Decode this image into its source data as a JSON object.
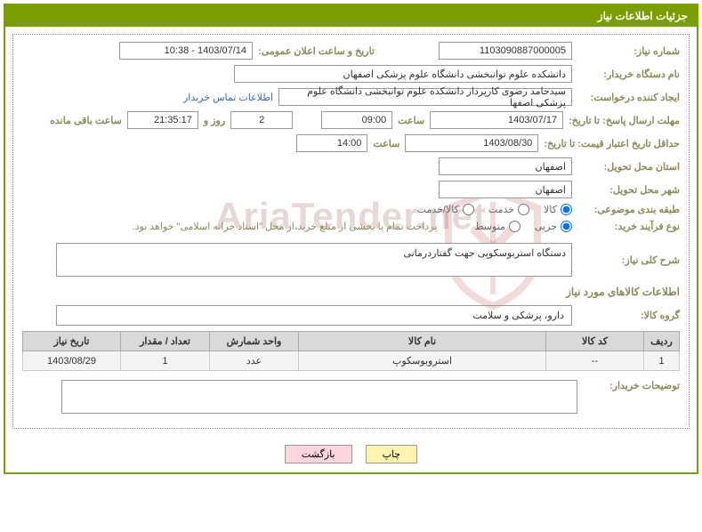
{
  "panel_title": "جزئیات اطلاعات نیاز",
  "labels": {
    "need_number": "شماره نیاز:",
    "announce_datetime": "تاریخ و ساعت اعلان عمومی:",
    "buyer_org": "نام دستگاه خریدار:",
    "requester": "ایجاد کننده درخواست:",
    "contact_link": "اطلاعات تماس خریدار",
    "response_deadline": "مهلت ارسال پاسخ: تا تاریخ:",
    "hour": "ساعت",
    "days_and": "روز و",
    "remaining": "ساعت باقی مانده",
    "price_validity": "حداقل تاریخ اعتبار قیمت: تا تاریخ:",
    "delivery_province": "استان محل تحویل:",
    "delivery_city": "شهر محل تحویل:",
    "category": "طبقه بندی موضوعی:",
    "purchase_type": "نوع فرآیند خرید:",
    "general_desc": "شرح کلی نیاز:",
    "items_info": "اطلاعات کالاهای مورد نیاز",
    "item_group": "گروه کالا:",
    "buyer_notes": "توضیحات خریدار:"
  },
  "values": {
    "need_number": "1103090887000005",
    "announce_datetime": "1403/07/14 - 10:38",
    "buyer_org": "دانشکده علوم توانبخشی دانشگاه علوم پزشکی اصفهان",
    "requester": "سیدحامد رضوی کارپرداز دانشکده علوم توانبخشی دانشگاه علوم پزشکی اصفها",
    "response_deadline_date": "1403/07/17",
    "response_deadline_time": "09:00",
    "remaining_days": "2",
    "remaining_time": "21:35:17",
    "price_validity_date": "1403/08/30",
    "price_validity_time": "14:00",
    "delivery_province": "اصفهان",
    "delivery_city": "اصفهان",
    "payment_note": "پرداخت تمام یا بخشی از مبلغ خرید،از محل \"اسناد خزانه اسلامی\" خواهد بود.",
    "general_desc": "دستگاه استربوسکوپی جهت گفتاردرمانی",
    "item_group": "دارو، پزشکی و سلامت",
    "buyer_notes": ""
  },
  "radios": {
    "category": {
      "options": [
        "کالا",
        "خدمت",
        "کالا/خدمت"
      ],
      "selected": 0
    },
    "purchase_type": {
      "options": [
        "جزیی",
        "متوسط"
      ],
      "selected": 0
    }
  },
  "table": {
    "columns": [
      "ردیف",
      "کد کالا",
      "نام کالا",
      "واحد شمارش",
      "تعداد / مقدار",
      "تاریخ نیاز"
    ],
    "rows": [
      [
        "1",
        "--",
        "استروبوسکوپ",
        "عدد",
        "1",
        "1403/08/29"
      ]
    ],
    "col_widths": [
      "40px",
      "110px",
      "auto",
      "100px",
      "100px",
      "110px"
    ]
  },
  "buttons": {
    "print": "چاپ",
    "back": "بازگشت"
  },
  "watermark": "AriaTender.net",
  "colors": {
    "accent": "#7a9e00",
    "label": "#8a8a5a",
    "link": "#3366cc"
  }
}
